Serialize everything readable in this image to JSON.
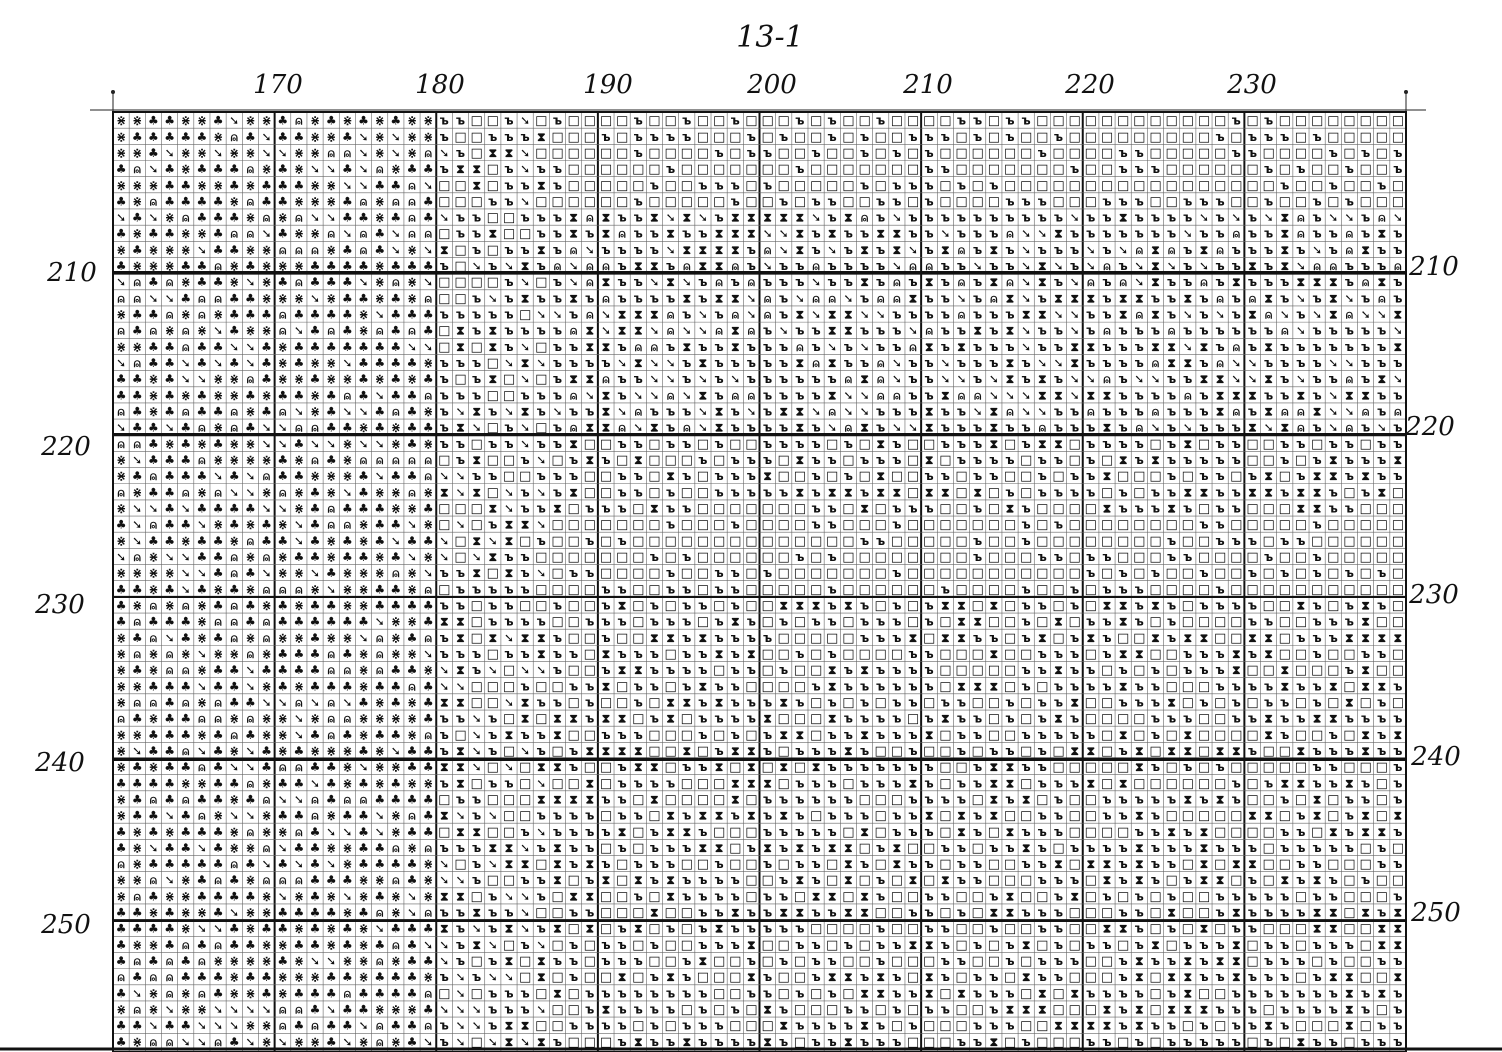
{
  "sheet": {
    "title": "13-1"
  },
  "column_axis": {
    "labels": [
      "170",
      "180",
      "190",
      "200",
      "210",
      "220",
      "230"
    ]
  },
  "row_axis": {
    "left_labels": [
      "210",
      "220",
      "230",
      "240",
      "250"
    ],
    "right_labels": [
      "210",
      "220",
      "230",
      "240",
      "250"
    ]
  },
  "legend_symbols": {
    "hard_sign": "ъ",
    "club": "♣",
    "empty_square": "□",
    "hourglass": "⧗",
    "bell": "⍝",
    "tick": "➘",
    "fan": "⋇"
  }
}
